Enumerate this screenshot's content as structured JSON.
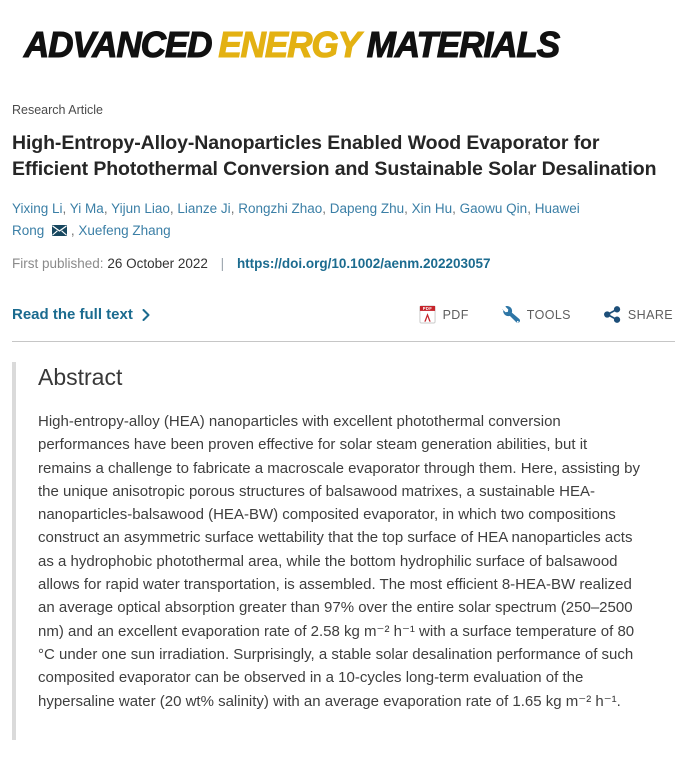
{
  "journal": {
    "name_part1": "ADVANCED",
    "name_part2": "ENERGY",
    "name_part3": "MATERIALS"
  },
  "article": {
    "type_label": "Research Article",
    "title": "High-Entropy-Alloy-Nanoparticles Enabled Wood Evaporator for Efficient Photothermal Conversion and Sustainable Solar Desalination",
    "authors": [
      "Yixing Li",
      "Yi Ma",
      "Yijun Liao",
      "Lianze Ji",
      "Rongzhi Zhao",
      "Dapeng Zhu",
      "Xin Hu",
      "Gaowu Qin",
      "Huawei Rong",
      "Xuefeng Zhang"
    ],
    "corresponding_author": "Huawei Rong",
    "first_published_label": "First published:",
    "first_published_date": "26 October 2022",
    "separator": "|",
    "doi_url": "https://doi.org/10.1002/aenm.202203057"
  },
  "actions": {
    "read_full_text": "Read the full text",
    "pdf": "PDF",
    "tools": "TOOLS",
    "share": "SHARE"
  },
  "abstract": {
    "heading": "Abstract",
    "body": "High-entropy-alloy (HEA) nanoparticles with excellent photothermal conversion performances have been proven effective for solar steam generation abilities, but it remains a challenge to fabricate a macroscale evaporator through them. Here, assisting by the unique anisotropic porous structures of balsawood matrixes, a sustainable HEA-nanoparticles-balsawood (HEA-BW) composited evaporator, in which two compositions construct an asymmetric surface wettability that the top surface of HEA nanoparticles acts as a hydrophobic photothermal area, while the bottom hydrophilic surface of balsawood allows for rapid water transportation, is assembled. The most efficient 8-HEA-BW realized an average optical absorption greater than 97% over the entire solar spectrum (250–2500 nm) and an excellent evaporation rate of 2.58 kg m⁻² h⁻¹ with a surface temperature of 80 °C under one sun irradiation. Surprisingly, a stable solar desalination performance of such composited evaporator can be observed in a 10-cycles long-term evaluation of the hypersaline water (20 wt% salinity) with an average evaporation rate of 1.65 kg m⁻² h⁻¹."
  },
  "icons": {
    "corresponding_author": "envelope-icon",
    "read_more": "chevron-right-icon",
    "pdf": "pdf-file-icon",
    "tools": "wrench-icon",
    "share": "share-nodes-icon"
  },
  "colors": {
    "logo_black": "#111111",
    "logo_energy": "#e3b112",
    "accent_link": "#1b6b8f",
    "author_link": "#3b7fa6",
    "divider": "#c6c6c6",
    "abstract_bar": "#dadada",
    "pdf_red": "#c6242b",
    "tools_blue": "#2e76a6",
    "share_navy": "#1d4f79",
    "envelope_navy": "#17475f"
  }
}
